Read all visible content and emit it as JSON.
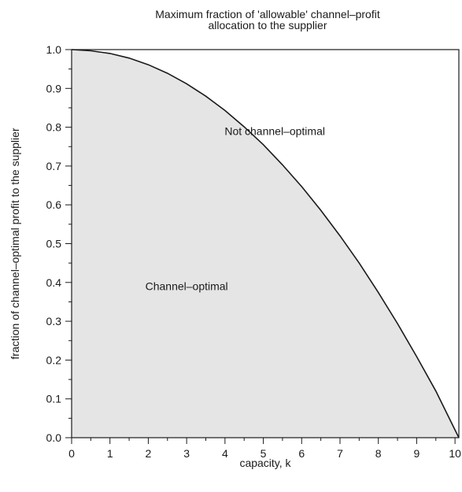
{
  "chart_data": {
    "type": "area",
    "title": [
      "Maximum fraction of  'allowable' channel–profit",
      "allocation to  the  supplier"
    ],
    "xlabel": "capacity, k",
    "ylabel": "fraction of channel–optimal profit to the supplier",
    "xlim": [
      0,
      10.1
    ],
    "ylim": [
      0,
      1.0
    ],
    "xticks": [
      0,
      1,
      2,
      3,
      4,
      5,
      6,
      7,
      8,
      9,
      10
    ],
    "xtick_labels": [
      "0",
      "1",
      "2",
      "3",
      "4",
      "5",
      "6",
      "7",
      "8",
      "9",
      "10"
    ],
    "yticks": [
      0.0,
      0.1,
      0.2,
      0.3,
      0.4,
      0.5,
      0.6,
      0.7,
      0.8,
      0.9,
      1.0
    ],
    "ytick_labels": [
      "0.0",
      "0.1",
      "0.2",
      "0.3",
      "0.4",
      "0.5",
      "0.6",
      "0.7",
      "0.8",
      "0.9",
      "1.0"
    ],
    "grid": false,
    "fill_color": "#e5e5e5",
    "line_color": "#1a1a1a",
    "series": [
      {
        "x": [
          0,
          0.5,
          1,
          1.5,
          2,
          2.5,
          3,
          3.5,
          4,
          4.5,
          5,
          5.5,
          6,
          6.5,
          7,
          7.5,
          8,
          8.5,
          9,
          9.5,
          10,
          10.1
        ],
        "values": [
          1.0,
          0.997,
          0.99,
          0.978,
          0.961,
          0.939,
          0.912,
          0.88,
          0.843,
          0.801,
          0.755,
          0.703,
          0.647,
          0.586,
          0.52,
          0.45,
          0.374,
          0.294,
          0.209,
          0.12,
          0.02,
          0.0
        ]
      }
    ],
    "annotations": [
      {
        "text": "Not channel–optimal",
        "x": 5.3,
        "y": 0.78
      },
      {
        "text": "Channel–optimal",
        "x": 3.0,
        "y": 0.38
      }
    ]
  }
}
